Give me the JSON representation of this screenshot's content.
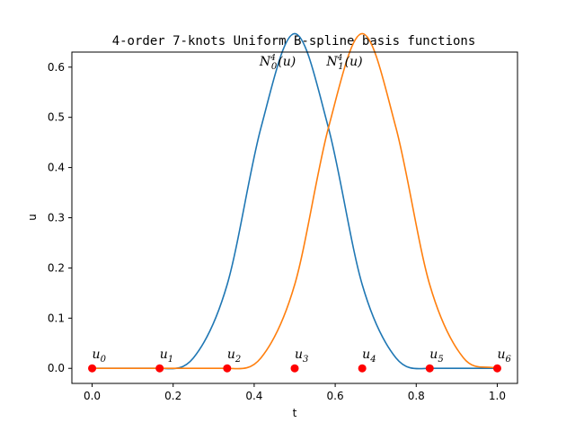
{
  "chart_data": {
    "type": "line",
    "title": "4-order 7-knots Uniform B-spline basis functions",
    "xlabel": "t",
    "ylabel": "u",
    "xlim": [
      -0.05,
      1.05
    ],
    "ylim": [
      -0.03,
      0.63
    ],
    "xticks": [
      0.0,
      0.2,
      0.4,
      0.6,
      0.8,
      1.0
    ],
    "xtick_labels": [
      "0.0",
      "0.2",
      "0.4",
      "0.6",
      "0.8",
      "1.0"
    ],
    "yticks": [
      0.0,
      0.1,
      0.2,
      0.3,
      0.4,
      0.5,
      0.6
    ],
    "ytick_labels": [
      "0.0",
      "0.1",
      "0.2",
      "0.3",
      "0.4",
      "0.5",
      "0.6"
    ],
    "grid": false,
    "series": [
      {
        "color": "#1f77b4",
        "x": [
          0.0,
          0.0833,
          0.1667,
          0.25,
          0.3333,
          0.4167,
          0.5,
          0.5833,
          0.6667,
          0.75,
          0.8333,
          0.9167,
          1.0
        ],
        "y": [
          0.0,
          0.0,
          0.0,
          0.0208,
          0.1667,
          0.4792,
          0.6667,
          0.4792,
          0.1667,
          0.0208,
          0.0,
          0.0,
          0.0
        ]
      },
      {
        "color": "#ff7f0e",
        "x": [
          0.0,
          0.0833,
          0.1667,
          0.25,
          0.3333,
          0.4167,
          0.5,
          0.5833,
          0.6667,
          0.75,
          0.8333,
          0.9167,
          1.0
        ],
        "y": [
          0.0,
          0.0,
          0.0,
          0.0,
          0.0,
          0.0208,
          0.1667,
          0.4792,
          0.6667,
          0.4792,
          0.1667,
          0.0208,
          0.0
        ]
      }
    ],
    "curve_labels": [
      {
        "base": "N",
        "sub": "0",
        "sup": "4",
        "arg": "(u)",
        "x": 0.42,
        "y": 0.6
      },
      {
        "base": "N",
        "sub": "1",
        "sup": "4",
        "arg": "(u)",
        "x": 0.585,
        "y": 0.6
      }
    ],
    "knots": {
      "color": "#ff0000",
      "x": [
        0.0,
        0.1667,
        0.3333,
        0.5,
        0.6667,
        0.8333,
        1.0
      ],
      "y": [
        0.0,
        0.0,
        0.0,
        0.0,
        0.0,
        0.0,
        0.0
      ],
      "labels": [
        {
          "base": "u",
          "sub": "0"
        },
        {
          "base": "u",
          "sub": "1"
        },
        {
          "base": "u",
          "sub": "2"
        },
        {
          "base": "u",
          "sub": "3"
        },
        {
          "base": "u",
          "sub": "4"
        },
        {
          "base": "u",
          "sub": "5"
        },
        {
          "base": "u",
          "sub": "6"
        }
      ]
    }
  }
}
